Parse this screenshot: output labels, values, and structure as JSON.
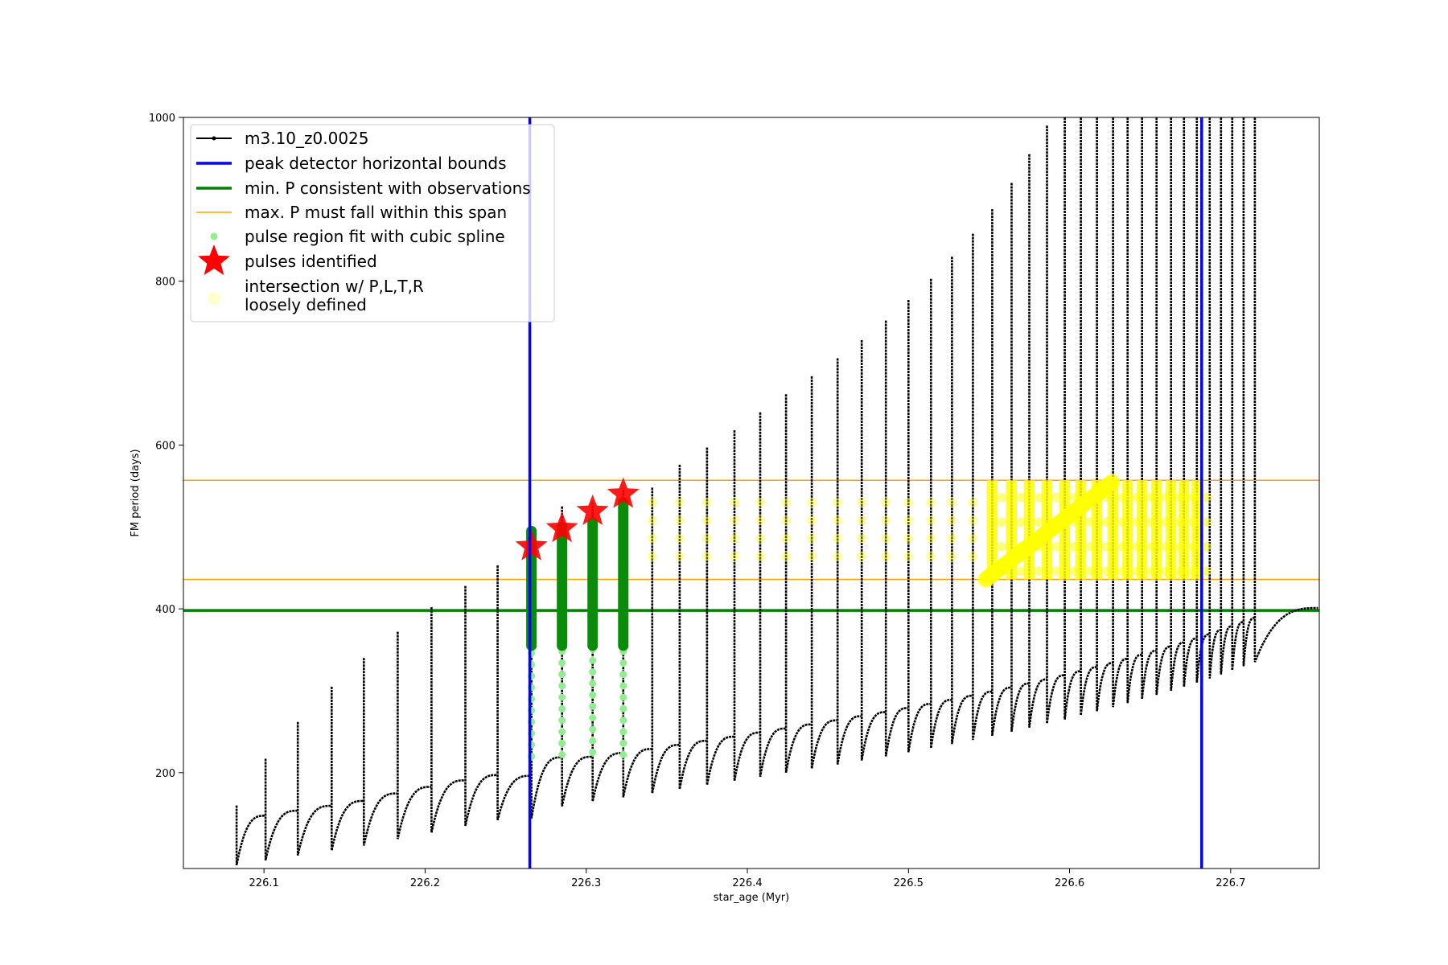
{
  "chart_data": {
    "type": "scatter",
    "title": "",
    "xlabel": "star_age (Myr)",
    "ylabel": "FM period (days)",
    "xlim": [
      226.05,
      226.755
    ],
    "ylim": [
      83,
      1000
    ],
    "x_ticks": [
      226.1,
      226.2,
      226.3,
      226.4,
      226.5,
      226.6,
      226.7
    ],
    "x_tick_labels": [
      "226.1",
      "226.2",
      "226.3",
      "226.4",
      "226.5",
      "226.6",
      "226.7"
    ],
    "y_ticks": [
      200,
      400,
      600,
      800,
      1000
    ],
    "y_tick_labels": [
      "200",
      "400",
      "600",
      "800",
      "1000"
    ],
    "grid": false,
    "legend_position": "top-left",
    "colors": {
      "model": "#000000",
      "bounds": "#0000ff",
      "min_p": "#008000",
      "max_p_span": "#ffa500",
      "spline": "#90ee90",
      "pulse_marker": "#ff0000",
      "intersection": "#ffff00"
    },
    "legend": [
      {
        "key": "model",
        "label": "m3.10_z0.0025"
      },
      {
        "key": "bounds",
        "label": "peak detector horizontal bounds"
      },
      {
        "key": "min_p",
        "label": "min. P consistent with observations"
      },
      {
        "key": "max_p_span",
        "label": "max. P must fall within this span"
      },
      {
        "key": "spline",
        "label": "pulse region fit with cubic spline"
      },
      {
        "key": "pulse_marker",
        "label": "pulses identified"
      },
      {
        "key": "intersection",
        "label": [
          "intersection w/ P,L,T,R",
          "loosely defined"
        ]
      }
    ],
    "peak_detector_bounds_x": [
      226.265,
      226.682
    ],
    "min_period_y": 398,
    "max_period_span_y": [
      436,
      557
    ],
    "pulses": [
      {
        "x": 226.083,
        "base": 93,
        "peak": 160
      },
      {
        "x": 226.101,
        "base": 99,
        "peak": 217
      },
      {
        "x": 226.121,
        "base": 105,
        "peak": 262
      },
      {
        "x": 226.142,
        "base": 111,
        "peak": 305
      },
      {
        "x": 226.162,
        "base": 117,
        "peak": 340
      },
      {
        "x": 226.183,
        "base": 125,
        "peak": 372
      },
      {
        "x": 226.204,
        "base": 133,
        "peak": 402
      },
      {
        "x": 226.225,
        "base": 141,
        "peak": 428
      },
      {
        "x": 226.245,
        "base": 148,
        "peak": 453
      },
      {
        "x": 226.266,
        "base": 150,
        "peak": 478
      },
      {
        "x": 226.285,
        "base": 165,
        "peak": 525
      },
      {
        "x": 226.304,
        "base": 171,
        "peak": 530
      },
      {
        "x": 226.323,
        "base": 176,
        "peak": 545
      },
      {
        "x": 226.341,
        "base": 181,
        "peak": 548
      },
      {
        "x": 226.358,
        "base": 186,
        "peak": 576
      },
      {
        "x": 226.375,
        "base": 191,
        "peak": 597
      },
      {
        "x": 226.392,
        "base": 196,
        "peak": 618
      },
      {
        "x": 226.408,
        "base": 201,
        "peak": 640
      },
      {
        "x": 226.424,
        "base": 206,
        "peak": 662
      },
      {
        "x": 226.44,
        "base": 211,
        "peak": 684
      },
      {
        "x": 226.456,
        "base": 216,
        "peak": 706
      },
      {
        "x": 226.471,
        "base": 221,
        "peak": 728
      },
      {
        "x": 226.486,
        "base": 226,
        "peak": 752
      },
      {
        "x": 226.5,
        "base": 231,
        "peak": 777
      },
      {
        "x": 226.514,
        "base": 236,
        "peak": 803
      },
      {
        "x": 226.527,
        "base": 241,
        "peak": 830
      },
      {
        "x": 226.54,
        "base": 246,
        "peak": 858
      },
      {
        "x": 226.552,
        "base": 251,
        "peak": 888
      },
      {
        "x": 226.564,
        "base": 256,
        "peak": 920
      },
      {
        "x": 226.575,
        "base": 261,
        "peak": 955
      },
      {
        "x": 226.586,
        "base": 266,
        "peak": 990
      },
      {
        "x": 226.597,
        "base": 271,
        "peak": 1000
      },
      {
        "x": 226.607,
        "base": 276,
        "peak": 1000
      },
      {
        "x": 226.617,
        "base": 281,
        "peak": 1000
      },
      {
        "x": 226.627,
        "base": 286,
        "peak": 1000
      },
      {
        "x": 226.636,
        "base": 291,
        "peak": 1000
      },
      {
        "x": 226.645,
        "base": 296,
        "peak": 1000
      },
      {
        "x": 226.654,
        "base": 301,
        "peak": 1000
      },
      {
        "x": 226.663,
        "base": 306,
        "peak": 1000
      },
      {
        "x": 226.671,
        "base": 311,
        "peak": 1000
      },
      {
        "x": 226.679,
        "base": 316,
        "peak": 1000
      },
      {
        "x": 226.687,
        "base": 321,
        "peak": 1000
      },
      {
        "x": 226.694,
        "base": 326,
        "peak": 1000
      },
      {
        "x": 226.701,
        "base": 331,
        "peak": 1000
      },
      {
        "x": 226.708,
        "base": 336,
        "peak": 1000
      },
      {
        "x": 226.715,
        "base": 341,
        "peak": 1000
      }
    ],
    "identified_pulses": [
      {
        "x": 226.266,
        "period": 476
      },
      {
        "x": 226.285,
        "period": 498
      },
      {
        "x": 226.304,
        "period": 519
      },
      {
        "x": 226.323,
        "period": 540
      }
    ],
    "spline_regions": [
      {
        "x": 226.266,
        "y_min": 220,
        "y_max": 495
      },
      {
        "x": 226.285,
        "y_min": 222,
        "y_max": 500
      },
      {
        "x": 226.304,
        "y_min": 225,
        "y_max": 505
      },
      {
        "x": 226.323,
        "y_min": 222,
        "y_max": 530
      }
    ],
    "intersection_x_range": [
      226.34,
      226.682
    ],
    "intersection_y_range": [
      436,
      557
    ]
  }
}
